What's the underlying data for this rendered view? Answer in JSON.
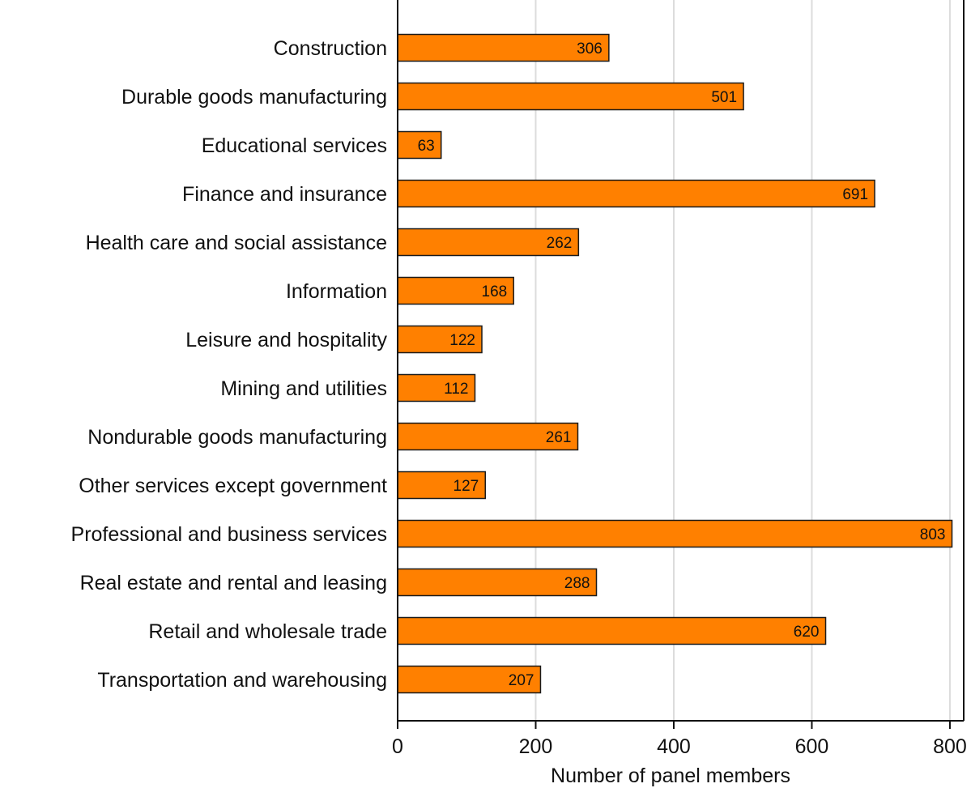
{
  "chart_data": {
    "type": "bar",
    "orientation": "horizontal",
    "categories": [
      "Construction",
      "Durable goods manufacturing",
      "Educational services",
      "Finance and insurance",
      "Health care and social assistance",
      "Information",
      "Leisure and hospitality",
      "Mining and utilities",
      "Nondurable goods manufacturing",
      "Other services except government",
      "Professional and business services",
      "Real estate and rental and leasing",
      "Retail and wholesale trade",
      "Transportation and warehousing"
    ],
    "values": [
      306,
      501,
      63,
      691,
      262,
      168,
      122,
      112,
      261,
      127,
      803,
      288,
      620,
      207
    ],
    "xlabel": "Number of panel members",
    "ylabel": "",
    "xlim": [
      0,
      820
    ],
    "xticks": [
      0,
      200,
      400,
      600,
      800
    ],
    "grid": true,
    "data_labels": true,
    "bar_color": "#FF8000",
    "bar_edge_color": "#1a1a1a",
    "grid_color": "#DCDCDC"
  }
}
